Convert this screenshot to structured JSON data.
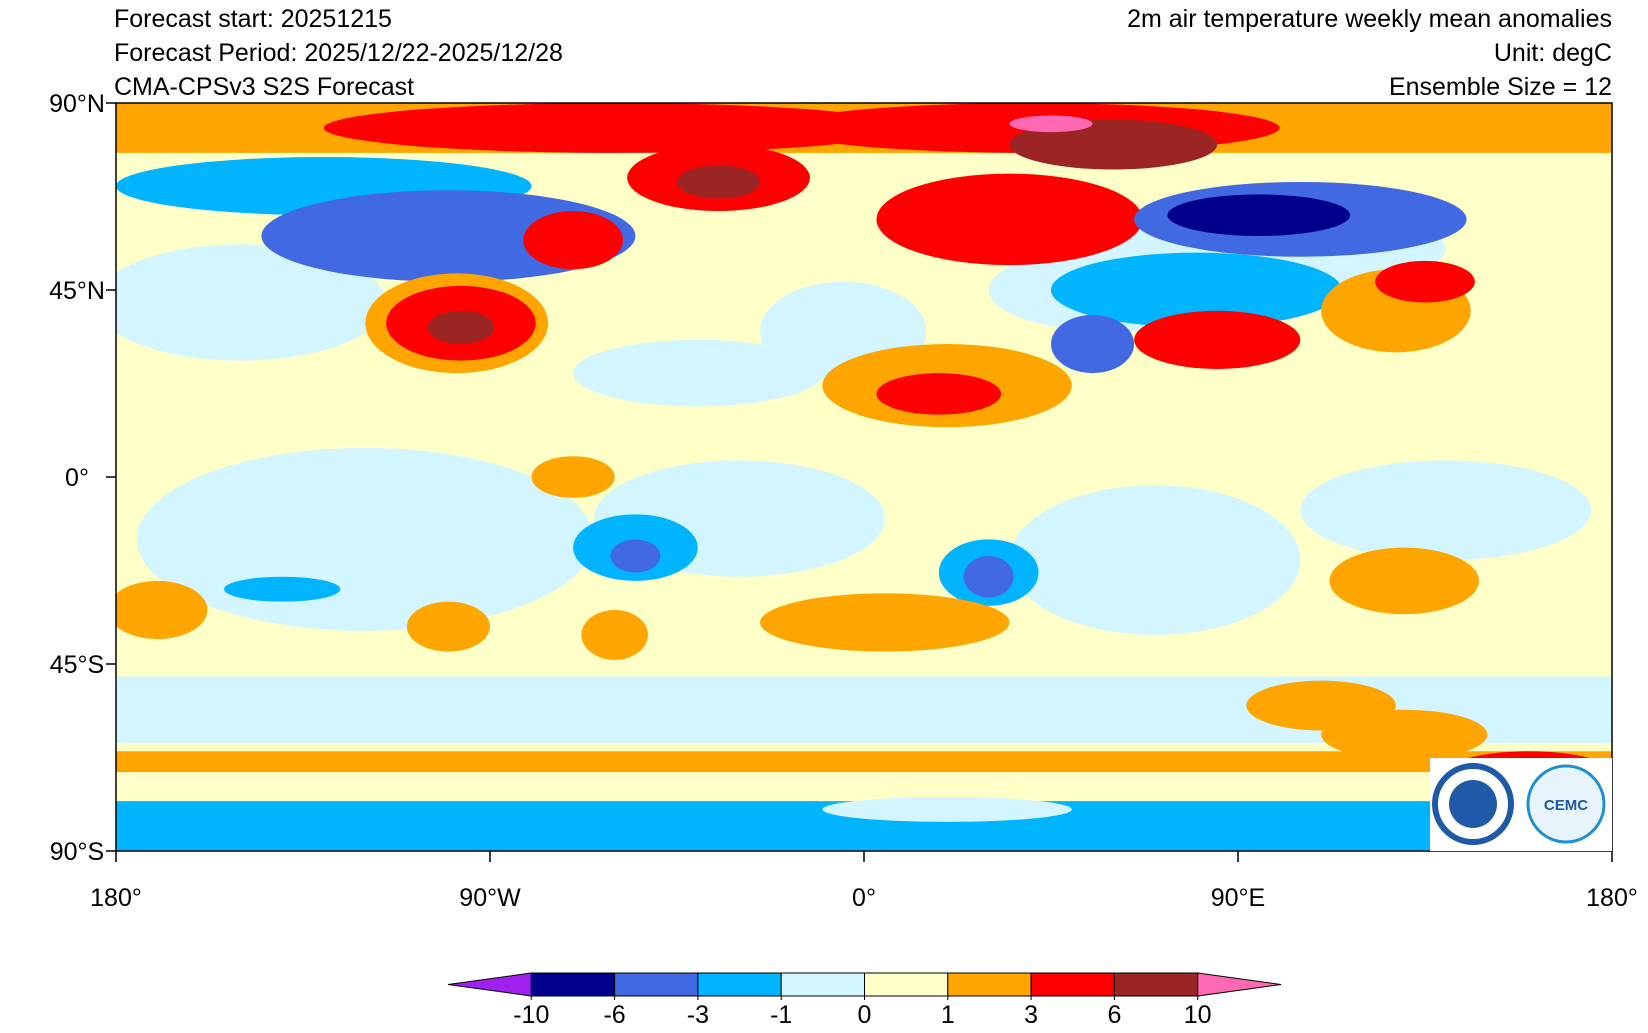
{
  "header": {
    "left": [
      "Forecast start: 20251215",
      "Forecast Period: 2025/12/22-2025/12/28",
      "CMA-CPSv3 S2S Forecast"
    ],
    "right": [
      "2m air temperature weekly mean anomalies",
      "Unit: degC",
      "Ensemble Size = 12"
    ]
  },
  "map": {
    "lat_labels": [
      "90°N",
      "45°N",
      "0°",
      "45°S",
      "90°S"
    ],
    "lon_labels": [
      "180°",
      "90°W",
      "0°",
      "90°E",
      "180°"
    ],
    "logo_text": "CEMC"
  },
  "colorbar": {
    "colors": [
      "#a020f0",
      "#00008c",
      "#4169e1",
      "#00b4ff",
      "#d2f5ff",
      "#ffffc8",
      "#ffa500",
      "#ff0000",
      "#9b2525",
      "#ff69b4"
    ],
    "ticks": [
      -10,
      -6,
      -3,
      -1,
      0,
      1,
      3,
      6,
      10
    ]
  }
}
